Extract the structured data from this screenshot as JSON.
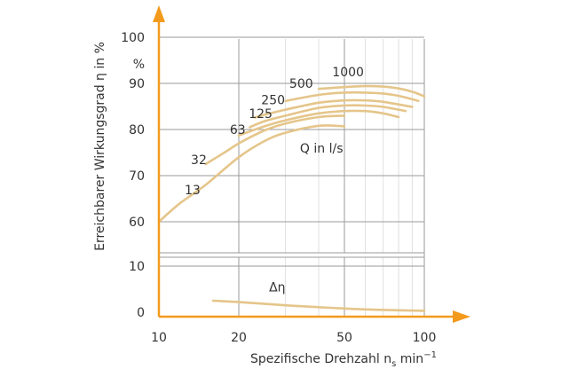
{
  "chart_data": {
    "type": "line",
    "xscale": "log",
    "xlim": [
      10,
      100
    ],
    "x_ticks": [
      "10",
      "20",
      "50",
      "100"
    ],
    "colors": {
      "axis": "#f39a1d",
      "curve": "#e5c58a",
      "grid": "#d9d9d9"
    },
    "upper": {
      "ylabel": "Erreichbarer Wirkungsgrad η in %",
      "unit_label": "%",
      "ylim": [
        55,
        100
      ],
      "y_ticks": [
        "60",
        "70",
        "80",
        "90",
        "100"
      ],
      "flow_label": "Q in l/s",
      "series": [
        {
          "name": "13",
          "x": [
            10,
            12,
            15,
            20,
            25,
            30,
            40,
            50
          ],
          "y": [
            60,
            64,
            68,
            74,
            77.5,
            79.3,
            80.8,
            80.7
          ]
        },
        {
          "name": "32",
          "x": [
            15,
            18,
            20,
            25,
            30,
            40,
            50
          ],
          "y": [
            72.5,
            75.3,
            77,
            79.8,
            81.3,
            82.7,
            83
          ]
        },
        {
          "name": "63",
          "x": [
            20,
            25,
            30,
            40,
            50,
            60,
            70,
            80
          ],
          "y": [
            78.7,
            80.7,
            82,
            83.5,
            84,
            84,
            83.5,
            82.7
          ]
        },
        {
          "name": "125",
          "x": [
            22,
            25,
            30,
            40,
            50,
            60,
            70,
            85
          ],
          "y": [
            80.5,
            81.8,
            83,
            84.7,
            85.2,
            85.2,
            84.9,
            84
          ]
        },
        {
          "name": "250",
          "x": [
            23,
            25,
            30,
            40,
            50,
            60,
            70,
            90
          ],
          "y": [
            82.6,
            83.2,
            84.3,
            85.8,
            86.3,
            86.3,
            86,
            84.9
          ]
        },
        {
          "name": "500",
          "x": [
            30,
            40,
            50,
            60,
            70,
            80,
            95
          ],
          "y": [
            86.2,
            87.5,
            88,
            88,
            87.8,
            87.3,
            86.2
          ]
        },
        {
          "name": "1000",
          "x": [
            40,
            50,
            60,
            70,
            80,
            90,
            100
          ],
          "y": [
            88.8,
            89.2,
            89.4,
            89.3,
            88.9,
            88.2,
            87.2
          ]
        }
      ],
      "label_positions": [
        {
          "name": "13",
          "at": [
            12.5,
            66
          ]
        },
        {
          "name": "32",
          "at": [
            13.2,
            72.5
          ]
        },
        {
          "name": "63",
          "at": [
            18.5,
            79
          ]
        },
        {
          "name": "125",
          "at": [
            21.8,
            82.5
          ]
        },
        {
          "name": "250",
          "at": [
            24.3,
            85.5
          ]
        },
        {
          "name": "500",
          "at": [
            31,
            89
          ]
        },
        {
          "name": "1000",
          "at": [
            45,
            91.5
          ]
        }
      ],
      "flow_label_at": [
        34,
        75
      ]
    },
    "lower": {
      "ylim": [
        -1,
        12
      ],
      "y_ticks": [
        "0",
        "10"
      ],
      "series": [
        {
          "name": "Δη",
          "x": [
            16,
            20,
            30,
            40,
            50,
            70,
            100
          ],
          "y": [
            2.5,
            2.2,
            1.5,
            1.1,
            0.8,
            0.5,
            0.3
          ]
        }
      ],
      "label": "Δη",
      "label_at": [
        26,
        4.5
      ]
    },
    "xlabel": "Spezifische Drehzahl n",
    "xlabel_sub": "s",
    "xlabel_unit": " min",
    "xlabel_sup": "−1"
  }
}
